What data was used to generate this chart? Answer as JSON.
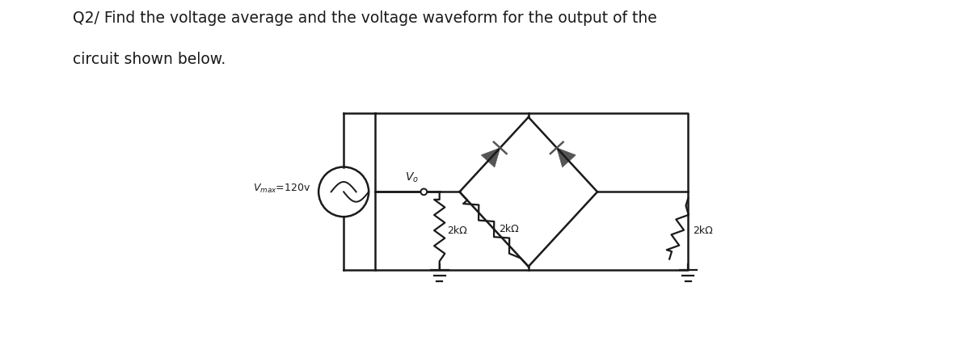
{
  "title_line1": "Q2/ Find the voltage average and the voltage waveform for the output of the",
  "title_line2": "circuit shown below.",
  "title_fontsize": 13.5,
  "bg_color": "#ffffff",
  "line_color": "#1a1a1a",
  "diode_color": "#555555",
  "text_color": "#1a1a1a",
  "label_vmax_sub": "max",
  "label_vmax_main": "=120v",
  "label_vo": "V",
  "label_vo_sub": "o",
  "label_r1": "2kΩ",
  "label_r2": "2kΩ",
  "label_r3": "2kΩ"
}
